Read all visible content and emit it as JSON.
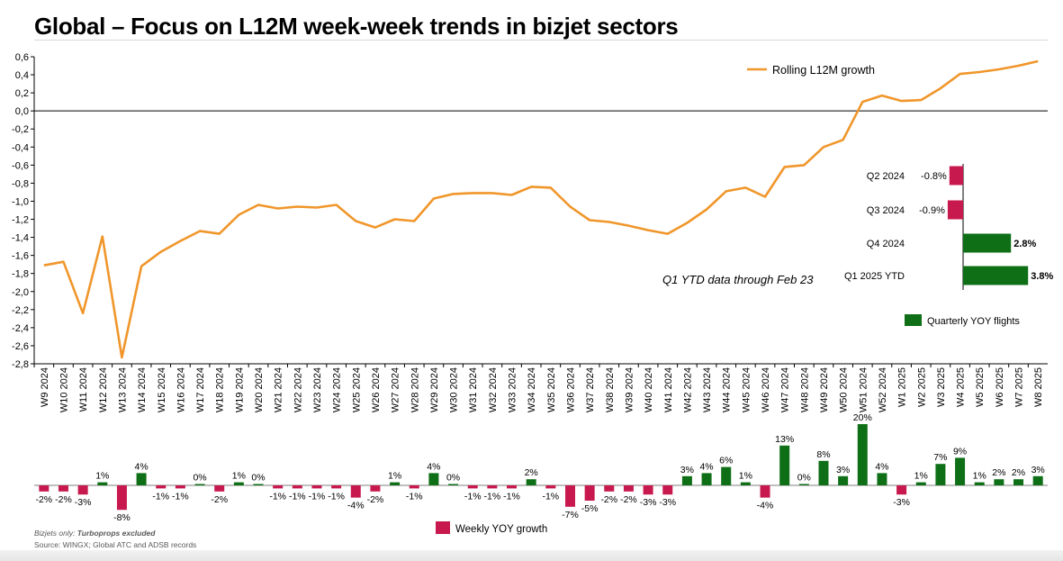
{
  "title": "Global – Focus on L12M week-week trends in bizjet sectors",
  "footer": {
    "note_prefix": "Bizjets only: ",
    "note_bold": "Turboprops excluded",
    "source": "Source: WINGX; Global ATC and ADSB records"
  },
  "colors": {
    "line": "#F0962B",
    "positive_bar": "#0E6F16",
    "negative_bar": "#C8194E"
  },
  "chart_data": [
    {
      "type": "line",
      "name": "Rolling L12M growth",
      "legend": "Rolling L12M growth",
      "ylim": [
        -2.8,
        0.6
      ],
      "yticks": [
        "0,6",
        "0,4",
        "0,2",
        "0,0",
        "-0,2",
        "-0,4",
        "-0,6",
        "-0,8",
        "-1,0",
        "-1,2",
        "-1,4",
        "-1,6",
        "-1,8",
        "-2,0",
        "-2,2",
        "-2,4",
        "-2,6",
        "-2,8"
      ],
      "categories": [
        "W9 2024",
        "W10 2024",
        "W11 2024",
        "W12 2024",
        "W13 2024",
        "W14 2024",
        "W15 2024",
        "W16 2024",
        "W17 2024",
        "W18 2024",
        "W19 2024",
        "W20 2024",
        "W21 2024",
        "W22 2024",
        "W23 2024",
        "W24 2024",
        "W25 2024",
        "W26 2024",
        "W27 2024",
        "W28 2024",
        "W29 2024",
        "W30 2024",
        "W31 2024",
        "W32 2024",
        "W33 2024",
        "W34 2024",
        "W35 2024",
        "W36 2024",
        "W37 2024",
        "W38 2024",
        "W39 2024",
        "W40 2024",
        "W41 2024",
        "W42 2024",
        "W43 2024",
        "W44 2024",
        "W45 2024",
        "W46 2024",
        "W47 2024",
        "W48 2024",
        "W49 2024",
        "W50 2024",
        "W51 2024",
        "W52 2024",
        "W1 2025",
        "W2 2025",
        "W3 2025",
        "W4 2025",
        "W5 2025",
        "W6 2025",
        "W7 2025",
        "W8 2025"
      ],
      "values": [
        -1.71,
        -1.67,
        -2.24,
        -1.39,
        -2.73,
        -1.72,
        -1.56,
        -1.44,
        -1.33,
        -1.36,
        -1.15,
        -1.04,
        -1.08,
        -1.06,
        -1.07,
        -1.04,
        -1.22,
        -1.29,
        -1.2,
        -1.22,
        -0.97,
        -0.92,
        -0.91,
        -0.91,
        -0.93,
        -0.84,
        -0.85,
        -1.06,
        -1.21,
        -1.23,
        -1.27,
        -1.32,
        -1.36,
        -1.24,
        -1.09,
        -0.89,
        -0.85,
        -0.95,
        -0.62,
        -0.6,
        -0.4,
        -0.32,
        0.1,
        0.17,
        0.11,
        0.12,
        0.25,
        0.41,
        0.43,
        0.46,
        0.5,
        0.55
      ],
      "grid": false,
      "legend_placement": "top-right"
    },
    {
      "type": "bar",
      "name": "Weekly YOY growth",
      "legend": "Weekly YOY growth",
      "values": [
        -2,
        -2,
        -3,
        1,
        -8,
        4,
        -1,
        -1,
        0,
        -2,
        1,
        0,
        -1,
        -1,
        -1,
        -1,
        -4,
        -2,
        1,
        -1,
        4,
        0,
        -1,
        -1,
        -1,
        2,
        -1,
        -7,
        -5,
        -2,
        -2,
        -3,
        -3,
        3,
        4,
        6,
        1,
        -4,
        13,
        0,
        8,
        3,
        20,
        4,
        -3,
        1,
        7,
        9,
        1,
        2,
        2,
        3
      ],
      "labels": [
        "-2%",
        "-2%",
        "-3%",
        "1%",
        "-8%",
        "4%",
        "-1%",
        "-1%",
        "0%",
        "-2%",
        "1%",
        "0%",
        "-1%",
        "-1%",
        "-1%",
        "-1%",
        "-4%",
        "-2%",
        "1%",
        "-1%",
        "4%",
        "0%",
        "-1%",
        "-1%",
        "-1%",
        "2%",
        "-1%",
        "-7%",
        "-5%",
        "-2%",
        "-2%",
        "-3%",
        "-3%",
        "3%",
        "4%",
        "6%",
        "1%",
        "-4%",
        "13%",
        "0%",
        "8%",
        "3%",
        "20%",
        "4%",
        "-3%",
        "1%",
        "7%",
        "9%",
        "1%",
        "2%",
        "2%",
        "3%"
      ],
      "legend_placement": "bottom-center"
    },
    {
      "type": "bar",
      "orientation": "horizontal",
      "name": "Quarterly YOY flights",
      "legend": "Quarterly YOY flights",
      "categories": [
        "Q2 2024",
        "Q3 2024",
        "Q4 2024",
        "Q1 2025 YTD"
      ],
      "values": [
        -0.8,
        -0.9,
        2.8,
        3.8
      ],
      "labels": [
        "-0.8%",
        "-0.9%",
        "2.8%",
        "3.8%"
      ],
      "annotation": "Q1 YTD data through Feb 23",
      "legend_placement": "bottom"
    }
  ]
}
